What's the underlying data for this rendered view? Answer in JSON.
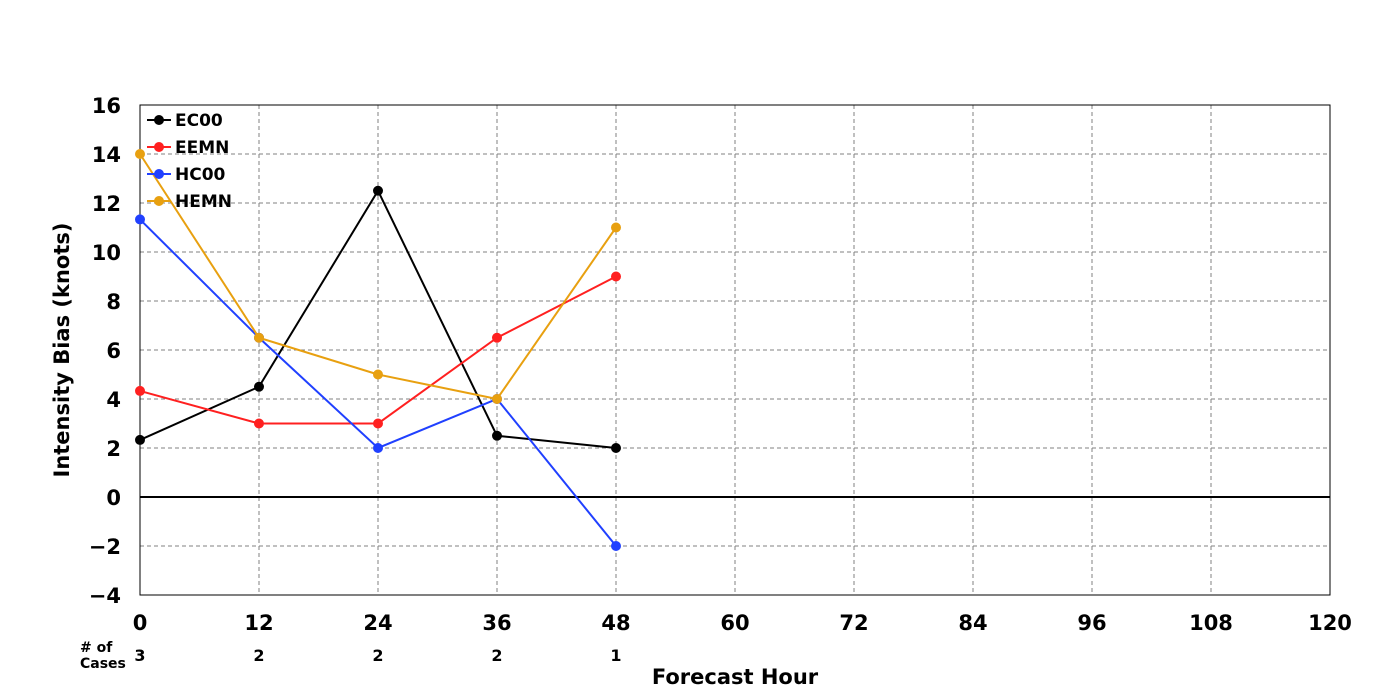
{
  "chart_data": {
    "type": "line",
    "title": "",
    "xlabel": "Forecast Hour",
    "ylabel": "Intensity Bias (knots)",
    "xlim": [
      0,
      120
    ],
    "ylim": [
      -4,
      16
    ],
    "x_ticks": [
      0,
      12,
      24,
      36,
      48,
      60,
      72,
      84,
      96,
      108,
      120
    ],
    "y_ticks": [
      -4,
      -2,
      0,
      2,
      4,
      6,
      8,
      10,
      12,
      14,
      16
    ],
    "grid": true,
    "legend_position": "top-left",
    "series": [
      {
        "name": "EC00",
        "color": "#000000",
        "x": [
          0,
          12,
          24,
          36,
          48
        ],
        "values": [
          2.33,
          4.5,
          12.5,
          2.5,
          2.0
        ]
      },
      {
        "name": "EEMN",
        "color": "#ff2020",
        "x": [
          0,
          12,
          24,
          36,
          48
        ],
        "values": [
          4.33,
          3.0,
          3.0,
          6.5,
          9.0
        ]
      },
      {
        "name": "HC00",
        "color": "#2040ff",
        "x": [
          0,
          12,
          24,
          36,
          48
        ],
        "values": [
          11.33,
          6.5,
          2.0,
          4.0,
          -2.0
        ]
      },
      {
        "name": "HEMN",
        "color": "#e8a010",
        "x": [
          0,
          12,
          24,
          36,
          48
        ],
        "values": [
          14.0,
          6.5,
          5.0,
          4.0,
          11.0
        ]
      }
    ],
    "cases": {
      "label_line1": "# of",
      "label_line2": "Cases",
      "x": [
        0,
        12,
        24,
        36,
        48
      ],
      "values": [
        "3",
        "2",
        "2",
        "2",
        "1"
      ]
    }
  }
}
